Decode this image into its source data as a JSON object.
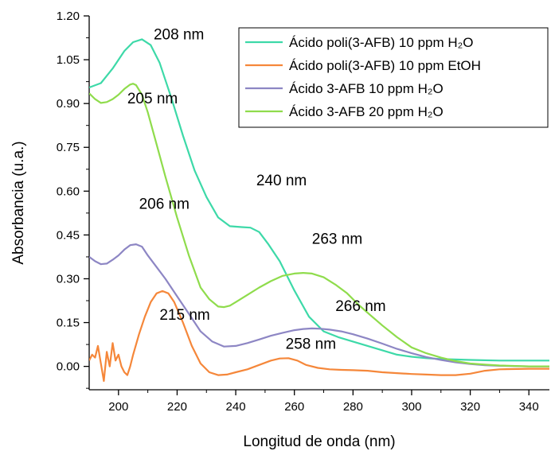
{
  "chart_data": {
    "type": "line",
    "xlabel": "Longitud de onda (nm)",
    "ylabel": "Absorbancia (u.a.)",
    "xlim": [
      190,
      347
    ],
    "ylim": [
      -0.08,
      1.2
    ],
    "xticks": [
      200,
      220,
      240,
      260,
      280,
      300,
      320,
      340
    ],
    "yticks": [
      0.0,
      0.15,
      0.3,
      0.45,
      0.6,
      0.75,
      0.9,
      1.05,
      1.2
    ],
    "ytick_labels": [
      "0.00",
      "0.15",
      "0.30",
      "0.45",
      "0.60",
      "0.75",
      "0.90",
      "1.05",
      "1.20"
    ],
    "legend_position": "top-right",
    "series": [
      {
        "name": "Ácido poli(3-AFB) 10 ppm H₂O",
        "color": "#3dd9a8",
        "x": [
          190,
          194,
          198,
          202,
          205,
          208,
          211,
          214,
          218,
          222,
          226,
          230,
          234,
          238,
          242,
          245,
          248,
          251,
          255,
          260,
          265,
          270,
          275,
          280,
          285,
          290,
          295,
          300,
          305,
          310,
          320,
          330,
          340,
          347
        ],
        "y": [
          0.955,
          0.97,
          1.02,
          1.08,
          1.11,
          1.12,
          1.1,
          1.04,
          0.92,
          0.79,
          0.67,
          0.58,
          0.51,
          0.48,
          0.477,
          0.475,
          0.46,
          0.42,
          0.36,
          0.26,
          0.17,
          0.12,
          0.1,
          0.085,
          0.07,
          0.055,
          0.04,
          0.033,
          0.028,
          0.025,
          0.022,
          0.02,
          0.02,
          0.02
        ]
      },
      {
        "name": "Ácido poli(3-AFB) 10 ppm EtOH",
        "color": "#f5873a",
        "x": [
          190,
          191,
          192,
          193,
          194,
          195,
          196,
          197,
          198,
          199,
          200,
          201,
          202,
          203,
          204,
          205,
          207,
          209,
          211,
          213,
          215,
          217,
          219,
          222,
          225,
          228,
          231,
          234,
          237,
          240,
          244,
          248,
          252,
          255,
          258,
          261,
          264,
          268,
          272,
          276,
          280,
          285,
          290,
          295,
          300,
          305,
          310,
          315,
          320,
          325,
          330,
          340,
          347
        ],
        "y": [
          0.02,
          0.04,
          0.03,
          0.07,
          0.01,
          -0.05,
          0.05,
          0.0,
          0.08,
          0.02,
          0.04,
          0.0,
          -0.02,
          -0.03,
          0.0,
          0.04,
          0.11,
          0.17,
          0.22,
          0.25,
          0.258,
          0.25,
          0.22,
          0.15,
          0.07,
          0.01,
          -0.02,
          -0.03,
          -0.028,
          -0.02,
          -0.01,
          0.005,
          0.02,
          0.027,
          0.028,
          0.02,
          0.005,
          -0.005,
          -0.01,
          -0.012,
          -0.013,
          -0.015,
          -0.02,
          -0.023,
          -0.026,
          -0.028,
          -0.03,
          -0.03,
          -0.025,
          -0.015,
          -0.01,
          -0.008,
          -0.008
        ]
      },
      {
        "name": "Ácido 3-AFB 10 ppm H₂O",
        "color": "#8d86c4",
        "x": [
          190,
          192,
          194,
          196,
          198,
          200,
          202,
          204,
          206,
          208,
          210,
          213,
          216,
          220,
          224,
          228,
          232,
          236,
          240,
          244,
          248,
          252,
          256,
          260,
          263,
          266,
          269,
          272,
          276,
          280,
          285,
          290,
          295,
          300,
          305,
          310,
          315,
          320,
          325,
          330,
          340,
          347
        ],
        "y": [
          0.375,
          0.36,
          0.35,
          0.352,
          0.365,
          0.38,
          0.4,
          0.415,
          0.418,
          0.41,
          0.38,
          0.34,
          0.3,
          0.24,
          0.18,
          0.12,
          0.085,
          0.068,
          0.07,
          0.08,
          0.092,
          0.105,
          0.115,
          0.124,
          0.128,
          0.13,
          0.129,
          0.126,
          0.12,
          0.11,
          0.095,
          0.078,
          0.06,
          0.045,
          0.032,
          0.022,
          0.014,
          0.008,
          0.004,
          0.002,
          0.0,
          0.0
        ]
      },
      {
        "name": "Ácido 3-AFB 20 ppm H₂O",
        "color": "#8fdc4c",
        "x": [
          190,
          192,
          194,
          196,
          198,
          200,
          202,
          204,
          205,
          206,
          208,
          210,
          213,
          216,
          220,
          224,
          228,
          231,
          234,
          236,
          238,
          240,
          244,
          248,
          252,
          256,
          260,
          263,
          266,
          270,
          274,
          278,
          282,
          286,
          290,
          295,
          300,
          305,
          310,
          315,
          320,
          325,
          330,
          340,
          347
        ],
        "y": [
          0.935,
          0.915,
          0.902,
          0.905,
          0.915,
          0.93,
          0.95,
          0.965,
          0.968,
          0.963,
          0.93,
          0.87,
          0.76,
          0.65,
          0.51,
          0.38,
          0.27,
          0.23,
          0.205,
          0.203,
          0.208,
          0.22,
          0.245,
          0.27,
          0.292,
          0.31,
          0.318,
          0.32,
          0.318,
          0.305,
          0.28,
          0.25,
          0.21,
          0.175,
          0.14,
          0.1,
          0.065,
          0.045,
          0.03,
          0.018,
          0.01,
          0.006,
          0.003,
          0.0,
          0.0
        ]
      }
    ],
    "annotations": [
      {
        "text": "208 nm",
        "x": 212,
        "y": 1.12
      },
      {
        "text": "205 nm",
        "x": 203,
        "y": 0.9
      },
      {
        "text": "240 nm",
        "x": 247,
        "y": 0.62
      },
      {
        "text": "206 nm",
        "x": 207,
        "y": 0.54
      },
      {
        "text": "263 nm",
        "x": 266,
        "y": 0.42
      },
      {
        "text": "266 nm",
        "x": 274,
        "y": 0.19
      },
      {
        "text": "215 nm",
        "x": 214,
        "y": 0.16
      },
      {
        "text": "258 nm",
        "x": 257,
        "y": 0.06
      }
    ]
  }
}
